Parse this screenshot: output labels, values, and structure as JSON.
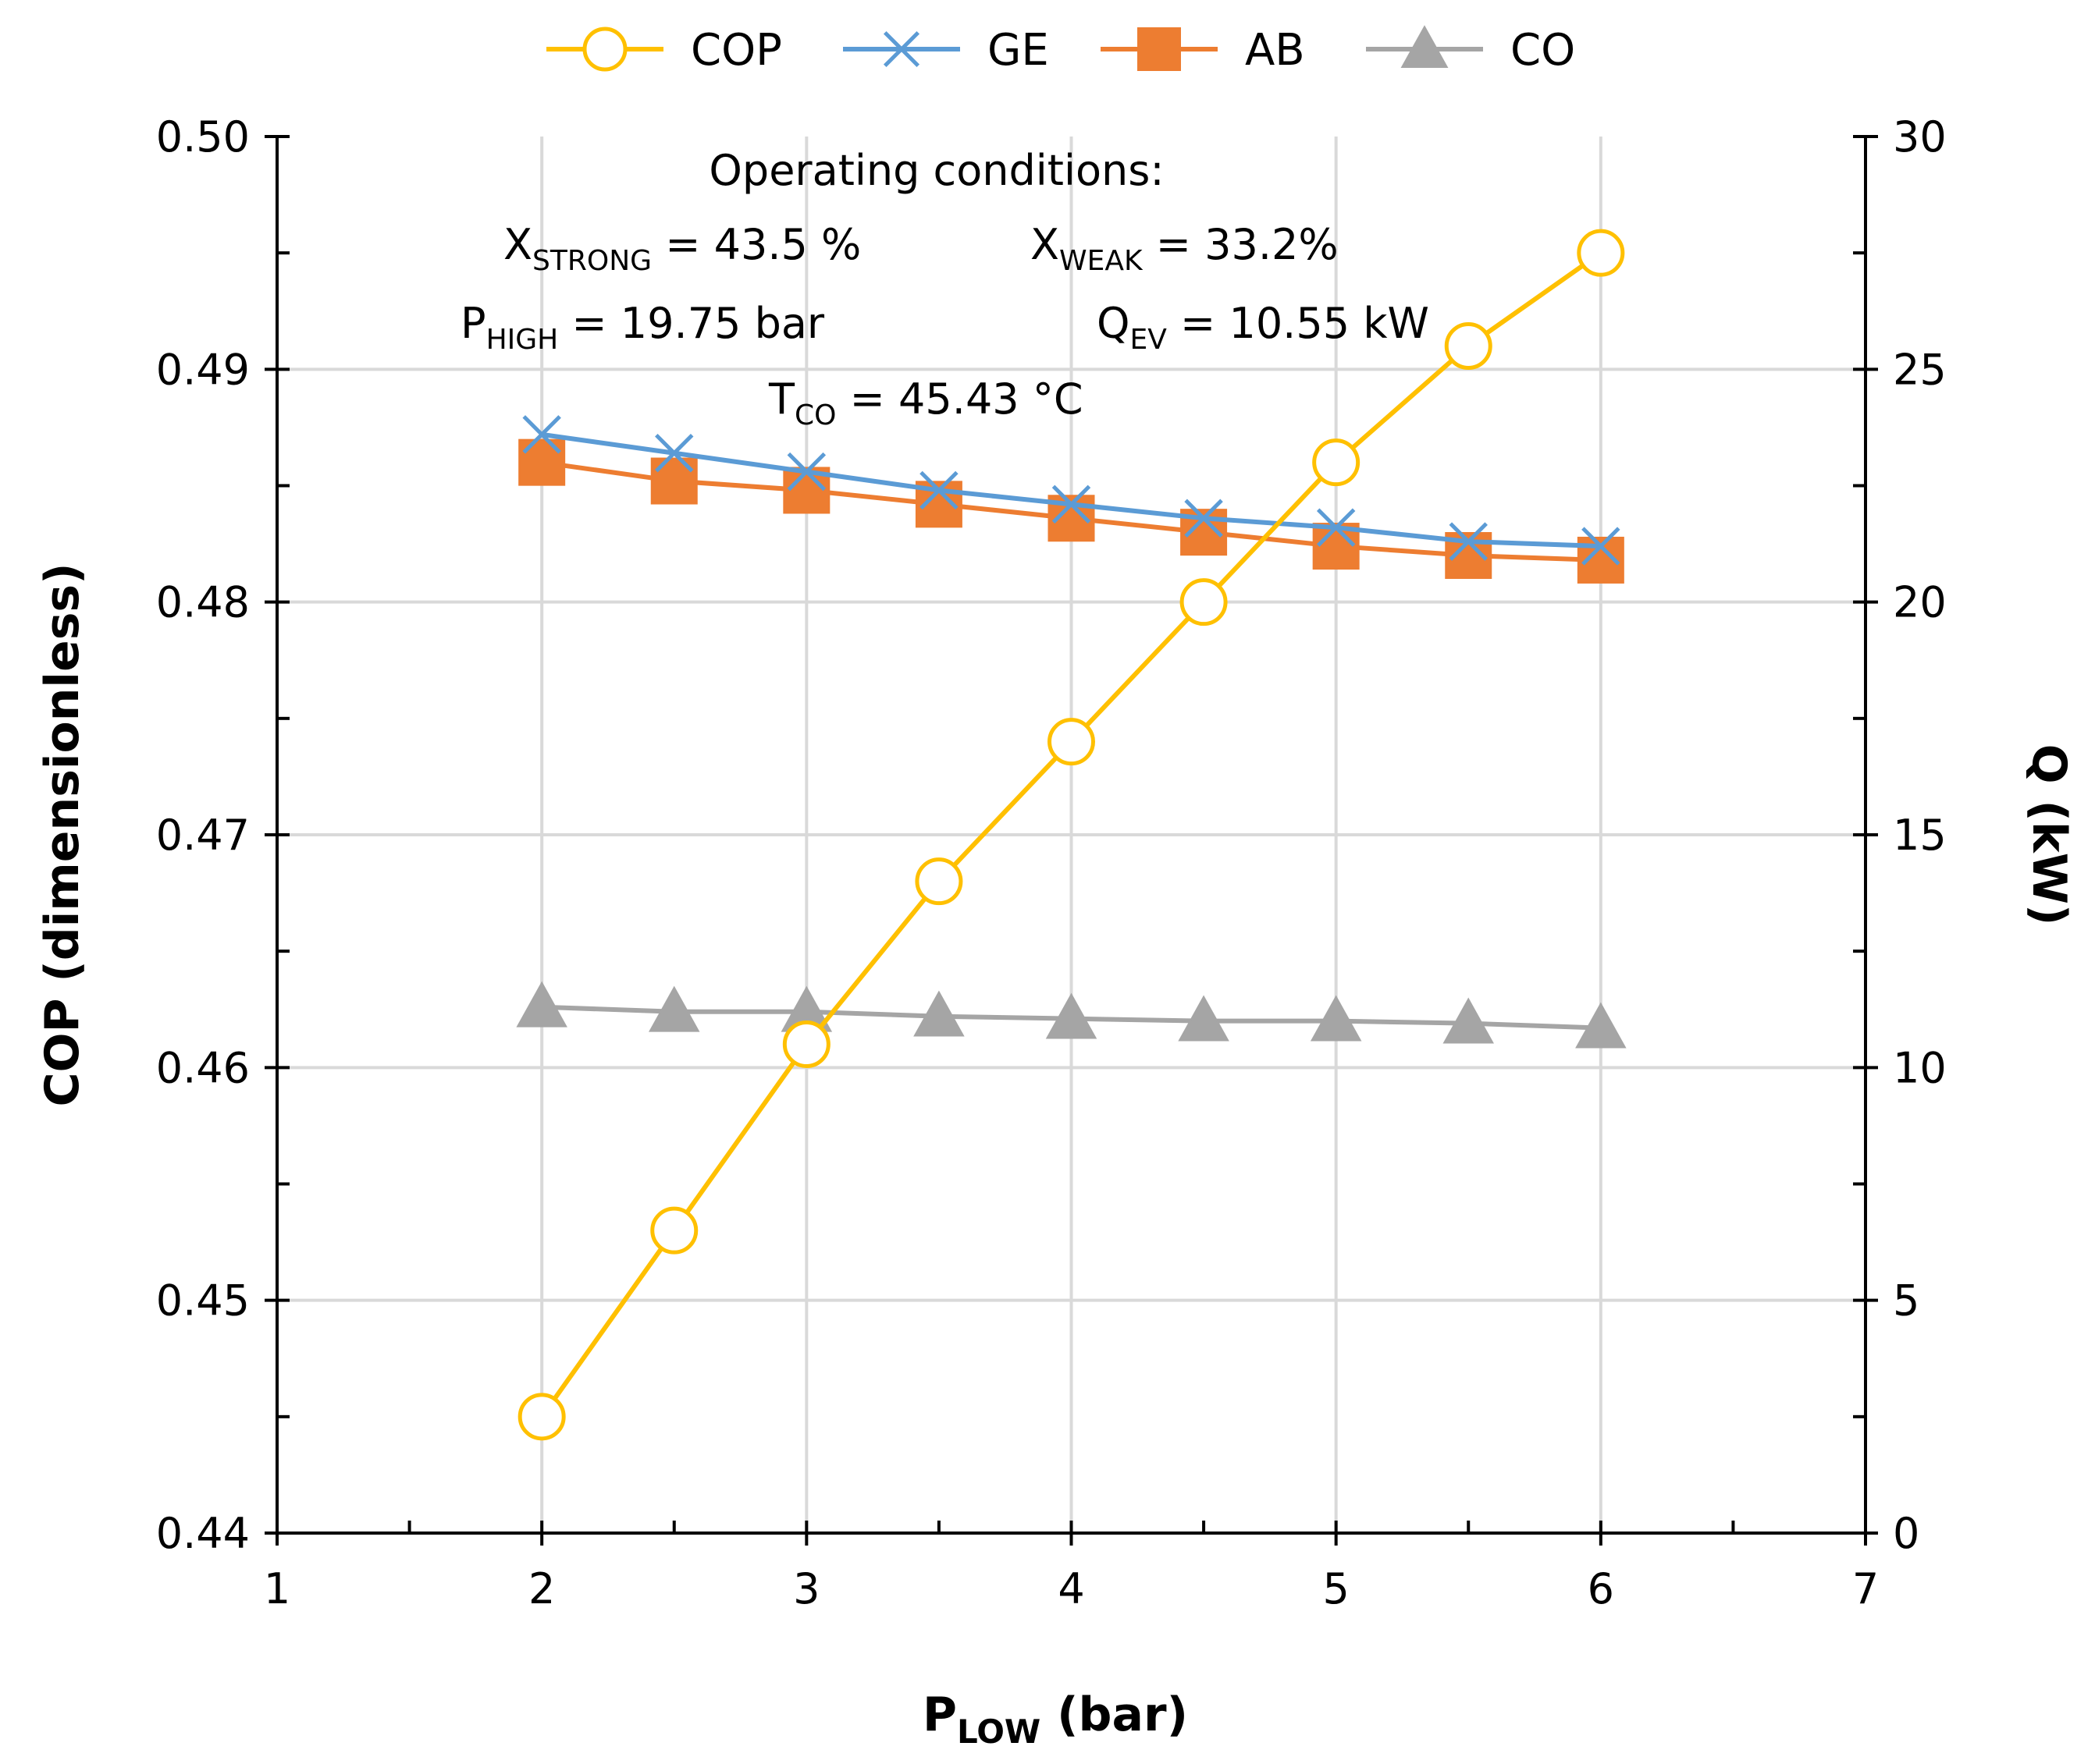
{
  "chart_data": {
    "type": "line",
    "x": [
      2,
      2.5,
      3,
      3.5,
      4,
      4.5,
      5,
      5.5,
      6
    ],
    "xlabel": {
      "main": "P",
      "sub": "LOW",
      "suffix": " (bar)"
    },
    "ylabel": "COP (dimensionless)",
    "y2label": "Q (kW)",
    "xlim": [
      1,
      7
    ],
    "ylim": [
      0.44,
      0.5
    ],
    "y2lim": [
      0,
      30
    ],
    "x_ticks": [
      "1",
      "2",
      "3",
      "4",
      "5",
      "6",
      "7"
    ],
    "y_ticks": [
      "0.44",
      "0.45",
      "0.46",
      "0.47",
      "0.48",
      "0.49",
      "0.50"
    ],
    "y2_ticks": [
      "0",
      "5",
      "10",
      "15",
      "20",
      "25",
      "30"
    ],
    "grid": true,
    "legend": "top-center",
    "series": [
      {
        "name": "COP",
        "axis": "left",
        "marker": "circle",
        "color": "#FFC000",
        "values": [
          0.445,
          0.453,
          0.461,
          0.468,
          0.474,
          0.48,
          0.486,
          0.491,
          0.495
        ]
      },
      {
        "name": "GE",
        "axis": "right",
        "marker": "x",
        "color": "#5B9BD5",
        "values": [
          23.6,
          23.2,
          22.8,
          22.4,
          22.1,
          21.8,
          21.6,
          21.3,
          21.2
        ]
      },
      {
        "name": "AB",
        "axis": "right",
        "marker": "square",
        "color": "#ED7D31",
        "values": [
          23.0,
          22.6,
          22.4,
          22.1,
          21.8,
          21.5,
          21.2,
          21.0,
          20.9
        ]
      },
      {
        "name": "CO",
        "axis": "right",
        "marker": "triangle",
        "color": "#A5A5A5",
        "values": [
          11.3,
          11.2,
          11.2,
          11.1,
          11.05,
          11.0,
          11.0,
          10.95,
          10.85
        ]
      }
    ],
    "annotations": {
      "title": "Operating conditions:",
      "x_strong": {
        "main": "X",
        "sub": "STRONG",
        "rest": " = 43.5 %"
      },
      "x_weak": {
        "main": "X",
        "sub": "WEAK",
        "rest": " = 33.2%"
      },
      "p_high": {
        "main": "P",
        "sub": "HIGH",
        "rest": " = 19.75 bar"
      },
      "q_ev": {
        "main": "Q",
        "sub": "EV",
        "rest": " = 10.55 kW"
      },
      "t_co": {
        "main": "T",
        "sub": "CO",
        "rest": " = 45.43 °C"
      }
    }
  }
}
